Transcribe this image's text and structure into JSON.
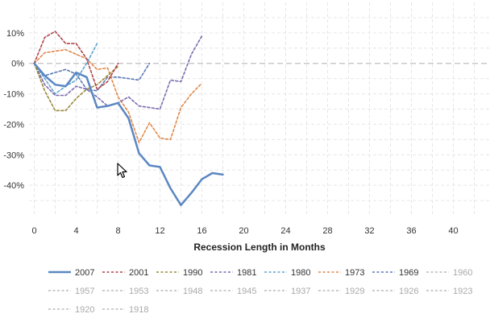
{
  "chart_data": {
    "type": "line",
    "title": "",
    "xlabel": "Recession Length in Months",
    "ylabel": "",
    "xlim": [
      -0.5,
      43.5
    ],
    "ylim": [
      -50,
      20
    ],
    "x_ticks": [
      0,
      4,
      8,
      12,
      16,
      20,
      24,
      28,
      32,
      36,
      40
    ],
    "y_ticks": [
      10,
      0,
      -10,
      -20,
      -30,
      -40
    ],
    "y_tick_labels": [
      "10%",
      "0%",
      "-10%",
      "-20%",
      "-30%",
      "-40%"
    ],
    "grid": true,
    "legend_position": "bottom",
    "series": [
      {
        "name": "2007",
        "color": "#5b87c2",
        "style": "solid",
        "visible": true,
        "x": [
          0,
          1,
          2,
          3,
          4,
          5,
          6,
          7,
          8,
          9,
          10,
          11,
          12,
          13,
          14,
          15,
          16,
          17,
          18
        ],
        "y": [
          0,
          -4,
          -7,
          -7.5,
          -3,
          -4.5,
          -14.5,
          -14,
          -13,
          -18,
          -29.5,
          -33.5,
          -34,
          -41,
          -46.5,
          -42.5,
          -38,
          -36,
          -36.5
        ]
      },
      {
        "name": "2001",
        "color": "#b2444c",
        "style": "dashed",
        "visible": true,
        "x": [
          0,
          1,
          2,
          3,
          4,
          5,
          6,
          7,
          8
        ],
        "y": [
          0,
          8.5,
          10.5,
          6.5,
          6.5,
          1.5,
          -8.5,
          -6,
          0
        ]
      },
      {
        "name": "1990",
        "color": "#9a8a3c",
        "style": "dashed",
        "visible": true,
        "x": [
          0,
          1,
          2,
          3,
          4,
          5,
          6,
          7,
          8
        ],
        "y": [
          0,
          -9,
          -15.5,
          -15.5,
          -11.5,
          -8.5,
          -7,
          -4,
          -1
        ]
      },
      {
        "name": "1981",
        "color": "#7b6bb0",
        "style": "dashed",
        "visible": true,
        "x": [
          0,
          1,
          2,
          3,
          4,
          5,
          6,
          7,
          8,
          9,
          10,
          11,
          12,
          13,
          14,
          15,
          16
        ],
        "y": [
          0,
          -7,
          -10.5,
          -10.5,
          -7.5,
          -8.5,
          -11,
          -14,
          -13,
          -11,
          -14,
          -14.5,
          -15,
          -5.5,
          -6,
          3,
          9
        ]
      },
      {
        "name": "1980",
        "color": "#5fa4cf",
        "style": "dashed",
        "visible": true,
        "x": [
          0,
          1,
          2,
          3,
          4,
          5,
          6
        ],
        "y": [
          0,
          -5,
          -10,
          -7.5,
          -5.5,
          0,
          6.5
        ]
      },
      {
        "name": "1973",
        "color": "#e0894a",
        "style": "dashed",
        "visible": true,
        "x": [
          0,
          1,
          2,
          3,
          4,
          5,
          6,
          7,
          8,
          9,
          10,
          11,
          12,
          13,
          14,
          15,
          16
        ],
        "y": [
          0,
          3.5,
          4,
          4.5,
          3,
          1.5,
          -2,
          -1.5,
          -11,
          -16,
          -26,
          -19.5,
          -24.5,
          -25,
          -14.5,
          -10,
          -6.5
        ]
      },
      {
        "name": "1969",
        "color": "#5b79b6",
        "style": "dashed",
        "visible": true,
        "x": [
          0,
          1,
          2,
          3,
          4,
          5,
          6,
          7,
          8,
          9,
          10,
          11
        ],
        "y": [
          0,
          -4,
          -3,
          -2,
          -3.5,
          -8.5,
          -9,
          -4.5,
          -4.5,
          -5,
          -5.5,
          0
        ]
      }
    ],
    "legend": [
      {
        "name": "2007",
        "active": true
      },
      {
        "name": "2001",
        "active": true
      },
      {
        "name": "1990",
        "active": true
      },
      {
        "name": "1981",
        "active": true
      },
      {
        "name": "1980",
        "active": true
      },
      {
        "name": "1973",
        "active": true
      },
      {
        "name": "1969",
        "active": true
      },
      {
        "name": "1960",
        "active": false
      },
      {
        "name": "1957",
        "active": false
      },
      {
        "name": "1953",
        "active": false
      },
      {
        "name": "1948",
        "active": false
      },
      {
        "name": "1945",
        "active": false
      },
      {
        "name": "1937",
        "active": false
      },
      {
        "name": "1929",
        "active": false
      },
      {
        "name": "1926",
        "active": false
      },
      {
        "name": "1923",
        "active": false
      },
      {
        "name": "1920",
        "active": false
      },
      {
        "name": "1918",
        "active": false
      }
    ],
    "inactive_color": "#bbbbbb"
  }
}
